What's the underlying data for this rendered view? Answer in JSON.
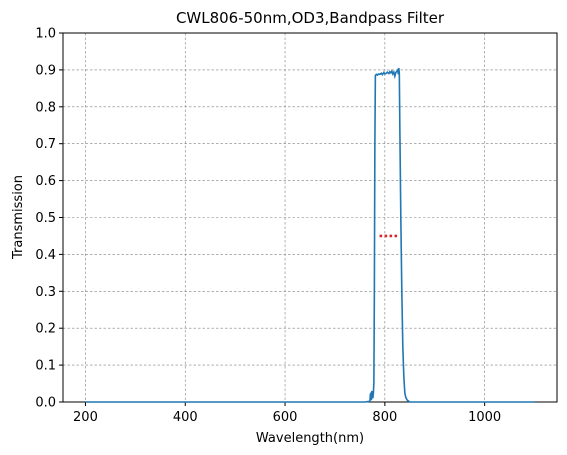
{
  "chart_data": {
    "type": "line",
    "title": "CWL806-50nm,OD3,Bandpass Filter",
    "xlabel": "Wavelength(nm)",
    "ylabel": "Transmission",
    "xlim": [
      155,
      1145
    ],
    "ylim": [
      0,
      1.0
    ],
    "xticks": [
      200,
      400,
      600,
      800,
      1000
    ],
    "yticks": [
      0.0,
      0.1,
      0.2,
      0.3,
      0.4,
      0.5,
      0.6,
      0.7,
      0.8,
      0.9,
      1.0
    ],
    "grid": true,
    "line_color": "#1f77b4",
    "marker_color": "#d62728",
    "series": [
      {
        "x": [
          200,
          400,
          600,
          760,
          770,
          771,
          772,
          773,
          774,
          775,
          776,
          777,
          778,
          779,
          780,
          781,
          783,
          785,
          788,
          790,
          793,
          795,
          798,
          800,
          803,
          805,
          808,
          810,
          812,
          814,
          816,
          818,
          820,
          822,
          824,
          826,
          827,
          828,
          829,
          830,
          832,
          834,
          836,
          838,
          840,
          842,
          845,
          848,
          850,
          1000,
          1100
        ],
        "y": [
          0.0,
          0.0,
          0.0,
          0.0,
          0.002,
          0.02,
          0.025,
          0.005,
          0.03,
          0.02,
          0.01,
          0.025,
          0.05,
          0.3,
          0.7,
          0.885,
          0.888,
          0.886,
          0.889,
          0.888,
          0.891,
          0.887,
          0.893,
          0.889,
          0.891,
          0.894,
          0.89,
          0.895,
          0.892,
          0.897,
          0.889,
          0.894,
          0.883,
          0.893,
          0.896,
          0.9,
          0.888,
          0.905,
          0.89,
          0.75,
          0.5,
          0.3,
          0.15,
          0.07,
          0.025,
          0.012,
          0.005,
          0.002,
          0.0,
          0.0,
          0.0
        ]
      }
    ],
    "markers": {
      "x": [
        792,
        802,
        812,
        822
      ],
      "y": [
        0.45,
        0.45,
        0.45,
        0.45
      ]
    }
  }
}
